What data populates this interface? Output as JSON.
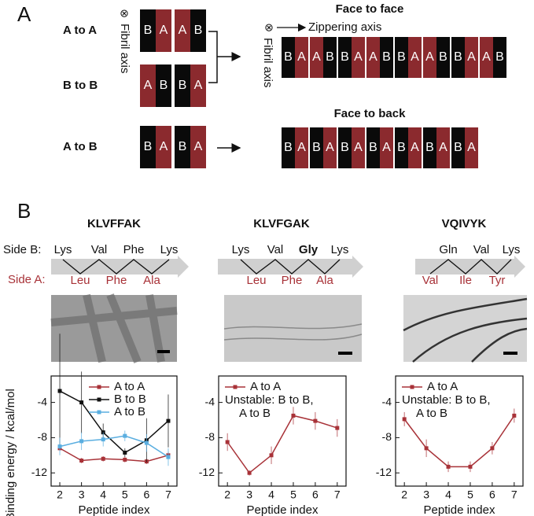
{
  "panel_a": {
    "label": "A",
    "rows": [
      {
        "label": "A to A",
        "blocks": [
          [
            "B",
            "A"
          ],
          [
            "A",
            "B"
          ]
        ]
      },
      {
        "label": "B to B",
        "blocks": [
          [
            "A",
            "B"
          ],
          [
            "B",
            "A"
          ]
        ]
      },
      {
        "label": "A to B",
        "blocks": [
          [
            "B",
            "A"
          ],
          [
            "B",
            "A"
          ]
        ]
      }
    ],
    "axis_symbol": "⊗",
    "fibril_axis": "Fibril axis",
    "zippering_axis": "Zippering axis",
    "face_to_face": {
      "title": "Face to face",
      "blocks": [
        [
          "B",
          "A"
        ],
        [
          "A",
          "B"
        ],
        [
          "B",
          "A"
        ],
        [
          "A",
          "B"
        ],
        [
          "B",
          "A"
        ],
        [
          "A",
          "B"
        ],
        [
          "B",
          "A"
        ],
        [
          "A",
          "B"
        ]
      ]
    },
    "face_to_back": {
      "title": "Face to back",
      "blocks": [
        [
          "B",
          "A"
        ],
        [
          "B",
          "A"
        ],
        [
          "B",
          "A"
        ],
        [
          "B",
          "A"
        ],
        [
          "B",
          "A"
        ],
        [
          "B",
          "A"
        ],
        [
          "B",
          "A"
        ]
      ]
    }
  },
  "panel_b": {
    "label": "B",
    "side_b": "Side B:",
    "side_a": "Side A:",
    "peptides": [
      {
        "name": "KLVFFAK",
        "side_b": [
          "Lys",
          "Val",
          "Phe",
          "Lys"
        ],
        "side_a": [
          "Leu",
          "Phe",
          "Ala"
        ]
      },
      {
        "name": "KLVFGAK",
        "side_b": [
          "Lys",
          "Val",
          "Gly",
          "Lys"
        ],
        "side_a": [
          "Leu",
          "Phe",
          "Ala"
        ]
      },
      {
        "name": "VQIVYK",
        "side_b": [
          "Gln",
          "Val",
          "Lys"
        ],
        "side_a": [
          "Val",
          "Ile",
          "Tyr"
        ]
      }
    ]
  },
  "chart_data": [
    {
      "type": "line",
      "xlabel": "Peptide index",
      "ylabel": "Binding energy / kcal/mol",
      "xlim": [
        1.6,
        7.4
      ],
      "ylim": [
        -13.5,
        -1
      ],
      "xticks": [
        2,
        3,
        4,
        5,
        6,
        7
      ],
      "yticks": [
        -12,
        -8,
        -4
      ],
      "legend": "upper right",
      "series": [
        {
          "name": "A to A",
          "color": "#a83238",
          "x": [
            2,
            3,
            4,
            5,
            6,
            7
          ],
          "values": [
            -9.2,
            -10.6,
            -10.4,
            -10.5,
            -10.7,
            -10.0
          ],
          "errors": [
            0.3,
            0.3,
            0.3,
            0.3,
            0.3,
            0.4
          ]
        },
        {
          "name": "B to B",
          "color": "#111111",
          "x": [
            2,
            3,
            4,
            5,
            6,
            7
          ],
          "values": [
            -2.7,
            -4.0,
            -7.4,
            -9.7,
            -8.3,
            -6.1
          ],
          "errors": [
            6.5,
            3.5,
            1.0,
            0.5,
            2.5,
            3.0
          ]
        },
        {
          "name": "A to B",
          "color": "#5aaee0",
          "x": [
            2,
            3,
            4,
            5,
            6,
            7
          ],
          "values": [
            -9.0,
            -8.4,
            -8.2,
            -7.8,
            -8.6,
            -10.2
          ],
          "errors": [
            1.0,
            1.0,
            0.8,
            0.6,
            1.0,
            1.0
          ]
        }
      ]
    },
    {
      "type": "line",
      "xlabel": "Peptide index",
      "xlim": [
        1.6,
        7.4
      ],
      "ylim": [
        -13.5,
        -1
      ],
      "xticks": [
        2,
        3,
        4,
        5,
        6,
        7
      ],
      "yticks": [
        -12,
        -8,
        -4
      ],
      "legend": "upper left",
      "annotations": [
        "Unstable: B to B,",
        "A to B"
      ],
      "series": [
        {
          "name": "A to A",
          "color": "#a83238",
          "x": [
            2,
            3,
            4,
            5,
            6,
            7
          ],
          "values": [
            -8.5,
            -12.0,
            -10.0,
            -5.5,
            -6.1,
            -6.9
          ],
          "errors": [
            1.0,
            0.3,
            1.0,
            1.0,
            1.0,
            1.0
          ]
        }
      ]
    },
    {
      "type": "line",
      "xlabel": "Peptide index",
      "xlim": [
        1.6,
        7.4
      ],
      "ylim": [
        -13.5,
        -1
      ],
      "xticks": [
        2,
        3,
        4,
        5,
        6,
        7
      ],
      "yticks": [
        -12,
        -8,
        -4
      ],
      "legend": "upper left",
      "annotations": [
        "Unstable: B to B,",
        "A to B"
      ],
      "series": [
        {
          "name": "A to A",
          "color": "#a83238",
          "x": [
            2,
            3,
            4,
            5,
            6,
            7
          ],
          "values": [
            -5.9,
            -9.2,
            -11.3,
            -11.3,
            -9.2,
            -5.5
          ],
          "errors": [
            0.8,
            1.0,
            0.6,
            0.6,
            0.7,
            0.8
          ]
        }
      ]
    }
  ]
}
